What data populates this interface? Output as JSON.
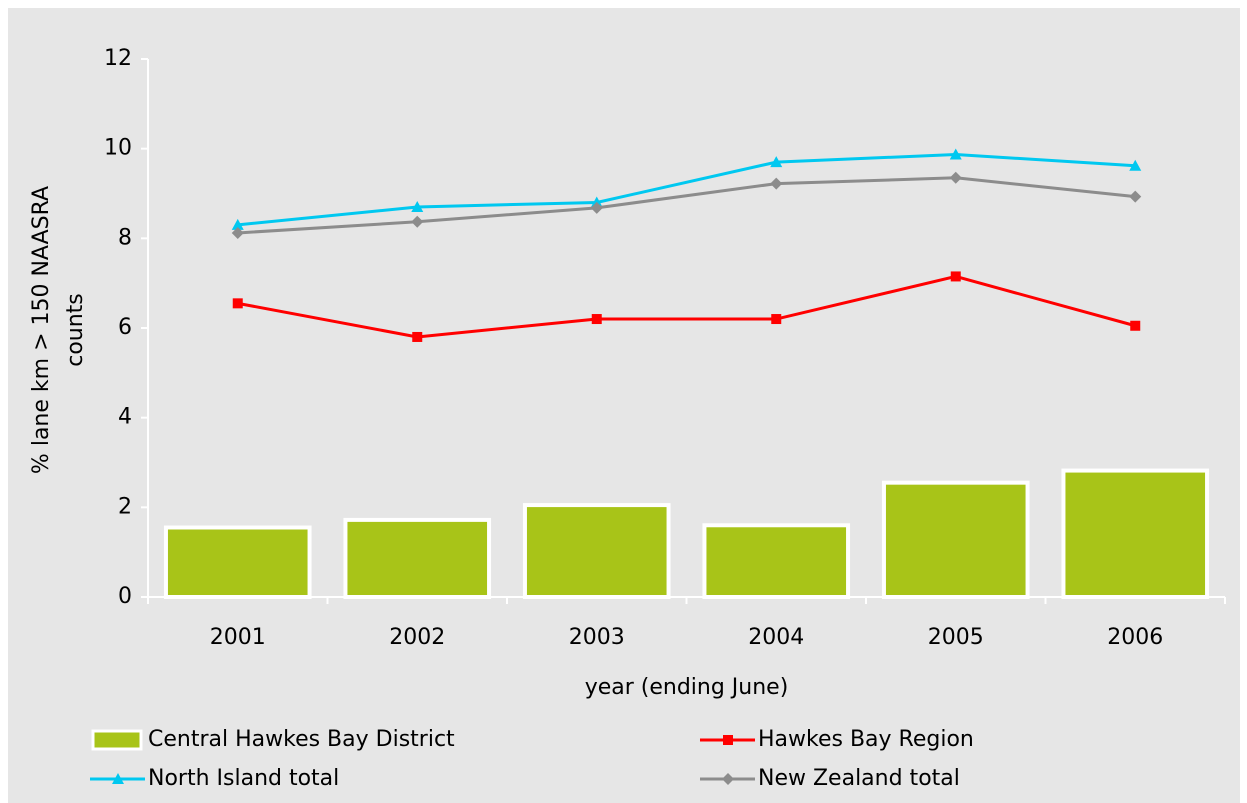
{
  "chart_data": {
    "type": "bar",
    "xlabel": "year (ending June)",
    "ylabel": [
      "% lane km > 150 NAASRA",
      "counts"
    ],
    "categories": [
      "2001",
      "2002",
      "2003",
      "2004",
      "2005",
      "2006"
    ],
    "ylim": [
      0,
      12
    ],
    "yticks": [
      0,
      2,
      4,
      6,
      8,
      10,
      12
    ],
    "grid": false,
    "series": [
      {
        "name": "Central Hawkes Bay District",
        "type": "bar",
        "color": "#a8c418",
        "values": [
          1.55,
          1.72,
          2.05,
          1.6,
          2.55,
          2.82
        ]
      },
      {
        "name": "Hawkes Bay Region",
        "type": "line",
        "marker": "square",
        "color": "#ff0000",
        "values": [
          6.55,
          5.8,
          6.2,
          6.2,
          7.15,
          6.05
        ]
      },
      {
        "name": "North Island total",
        "type": "line",
        "marker": "triangle",
        "color": "#00c8f0",
        "values": [
          8.3,
          8.7,
          8.8,
          9.7,
          9.87,
          9.62
        ]
      },
      {
        "name": "New Zealand total",
        "type": "line",
        "marker": "diamond",
        "color": "#8c8c8c",
        "values": [
          8.12,
          8.37,
          8.68,
          9.22,
          9.35,
          8.93
        ]
      }
    ]
  }
}
